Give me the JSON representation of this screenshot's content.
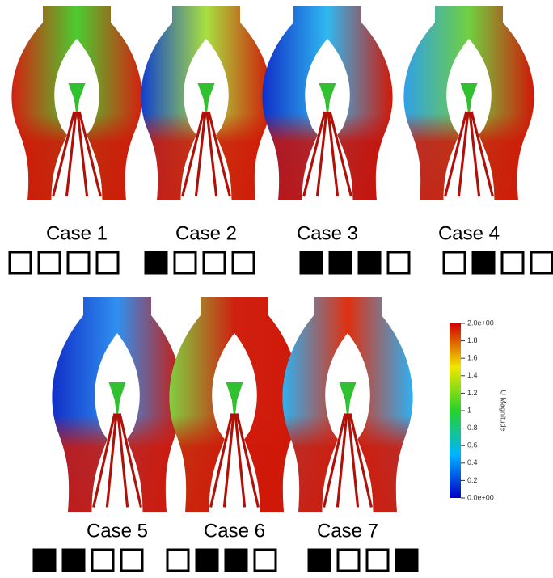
{
  "cases": [
    {
      "label": "Case 1",
      "valves": [
        false,
        false,
        false,
        false
      ]
    },
    {
      "label": "Case 2",
      "valves": [
        true,
        false,
        false,
        false
      ]
    },
    {
      "label": "Case 3",
      "valves": [
        true,
        true,
        true,
        false
      ]
    },
    {
      "label": "Case 4",
      "valves": [
        false,
        true,
        false,
        false
      ]
    },
    {
      "label": "Case 5",
      "valves": [
        true,
        true,
        false,
        false
      ]
    },
    {
      "label": "Case 6",
      "valves": [
        false,
        true,
        true,
        false
      ]
    },
    {
      "label": "Case 7",
      "valves": [
        true,
        false,
        false,
        true
      ]
    }
  ],
  "colorbar": {
    "title": "U Magnitude",
    "range": [
      0,
      2
    ],
    "ticks": [
      {
        "value": 2,
        "label": "2.0e+00"
      },
      1.8,
      1.6,
      1.4,
      1.2,
      1,
      0.8,
      0.6,
      0.4,
      0.2,
      {
        "value": 0,
        "label": "0.0e+00"
      }
    ]
  }
}
